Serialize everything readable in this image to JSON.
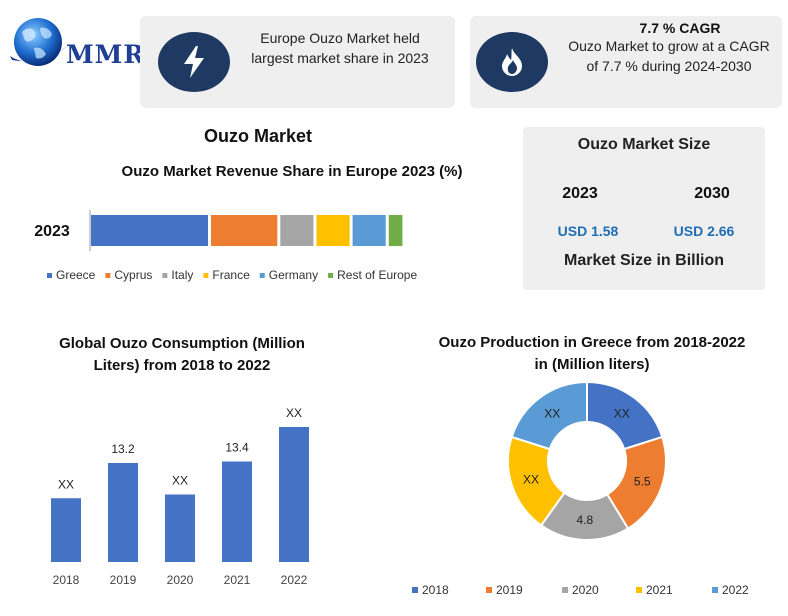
{
  "logo": {
    "text": "MMR"
  },
  "header": {
    "europe_share_text": "Europe Ouzo Market held largest market share in 2023",
    "cagr_title": "7.7 % CAGR",
    "cagr_text": "Ouzo Market to grow at a CAGR of 7.7 % during 2024-2030"
  },
  "main_title": "Ouzo Market",
  "market_size": {
    "title": "Ouzo Market Size",
    "year_a": "2023",
    "year_b": "2030",
    "value_a": "USD 1.58",
    "value_b": "USD 2.66",
    "footer": "Market Size in Billion"
  },
  "colors": {
    "icon_bg": "#1e3a63",
    "box_bg": "#efefef",
    "value_blue": "#1f6db3",
    "bar_blue": "#4472c4"
  },
  "chart_data": [
    {
      "type": "bar",
      "orientation": "horizontal",
      "stacked": true,
      "title": "Ouzo Market Revenue Share in Europe 2023 (%)",
      "categories": [
        "2023"
      ],
      "series": [
        {
          "name": "Greece",
          "values": [
            30
          ],
          "color": "#4472c4"
        },
        {
          "name": "Cyprus",
          "values": [
            17
          ],
          "color": "#ed7d31"
        },
        {
          "name": "Italy",
          "values": [
            8.5
          ],
          "color": "#a5a5a5"
        },
        {
          "name": "France",
          "values": [
            8.5
          ],
          "color": "#ffc000"
        },
        {
          "name": "Germany",
          "values": [
            8.5
          ],
          "color": "#5b9bd5"
        },
        {
          "name": "Rest of Europe",
          "values": [
            3.5
          ],
          "color": "#70ad47"
        }
      ],
      "legend": "bottom"
    },
    {
      "type": "bar",
      "title": "Global Ouzo Consumption (Million Liters) from 2018 to 2022",
      "categories": [
        "2018",
        "2019",
        "2020",
        "2021",
        "2022"
      ],
      "values": [
        8.5,
        13.2,
        9.0,
        13.4,
        18.0
      ],
      "data_labels": [
        "XX",
        "13.2",
        "XX",
        "13.4",
        "XX"
      ],
      "color": "#4472c4",
      "ylim": [
        0,
        20
      ]
    },
    {
      "type": "pie",
      "donut": true,
      "title": "Ouzo Production in Greece from 2018-2022 in (Million liters)",
      "categories": [
        "2018",
        "2019",
        "2020",
        "2021",
        "2022"
      ],
      "values": [
        5.2,
        5.5,
        4.8,
        5.2,
        5.2
      ],
      "data_labels": [
        "XX",
        "5.5",
        "4.8",
        "XX",
        "XX"
      ],
      "colors": [
        "#4472c4",
        "#ed7d31",
        "#a5a5a5",
        "#ffc000",
        "#5b9bd5"
      ],
      "legend": "bottom"
    }
  ]
}
